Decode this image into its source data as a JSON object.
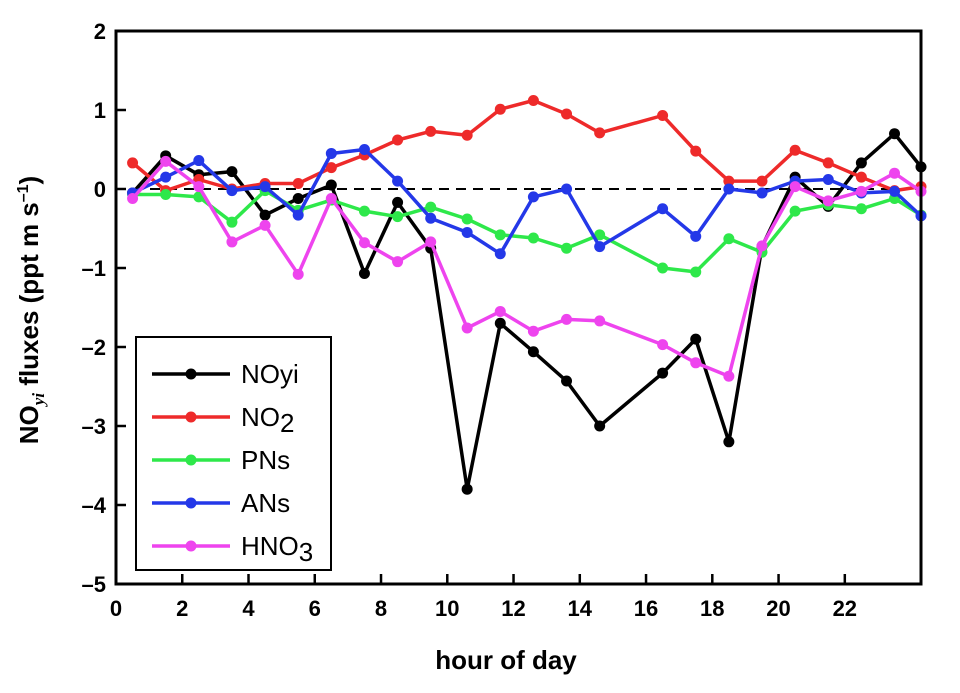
{
  "chart_data": {
    "type": "line",
    "xlabel": "hour of day",
    "ylabel": {
      "prefix": "NO",
      "subscript": "yi",
      "main": " fluxes (ppt m s",
      "superscript": "–1",
      "suffix": ")"
    },
    "xlim": [
      0,
      24.3
    ],
    "ylim": [
      -5,
      2
    ],
    "xticks": [
      0,
      2,
      4,
      6,
      8,
      10,
      12,
      14,
      16,
      18,
      20,
      22
    ],
    "yticks": [
      2,
      1,
      0,
      -1,
      -2,
      -3,
      -4,
      -5
    ],
    "ytick_labels": [
      "2",
      "1",
      "0",
      "–1",
      "–2",
      "–3",
      "–4",
      "–5"
    ],
    "zero_line": "dashed",
    "legend_placement": "bottom-left",
    "series": [
      {
        "name": "NOyi",
        "name_main": "NOyi",
        "name_sub": "",
        "name_tail": "",
        "color": "#000000",
        "x": [
          0.5,
          1.5,
          2.5,
          3.5,
          4.5,
          5.5,
          6.5,
          7.5,
          8.5,
          9.5,
          10.6,
          11.6,
          12.6,
          13.6,
          14.6,
          16.5,
          17.5,
          18.5,
          19.5,
          20.5,
          21.5,
          22.5,
          23.5,
          24.3
        ],
        "y": [
          -0.05,
          0.42,
          0.18,
          0.22,
          -0.33,
          -0.12,
          0.05,
          -1.07,
          -0.17,
          -0.75,
          -3.8,
          -1.7,
          -2.06,
          -2.43,
          -3.0,
          -2.33,
          -1.9,
          -3.2,
          -0.73,
          0.15,
          -0.22,
          0.33,
          0.7,
          0.28
        ]
      },
      {
        "name": "NO2",
        "name_main": "NO",
        "name_sub": "2",
        "name_tail": "",
        "color": "#ee2a2a",
        "x": [
          0.5,
          1.5,
          2.5,
          3.5,
          4.5,
          5.5,
          6.5,
          7.5,
          8.5,
          9.5,
          10.6,
          11.6,
          12.6,
          13.6,
          14.6,
          16.5,
          17.5,
          18.5,
          19.5,
          20.5,
          21.5,
          22.5,
          23.5,
          24.3
        ],
        "y": [
          0.33,
          -0.02,
          0.12,
          0.0,
          0.07,
          0.07,
          0.27,
          0.43,
          0.62,
          0.73,
          0.68,
          1.01,
          1.12,
          0.95,
          0.71,
          0.93,
          0.48,
          0.1,
          0.1,
          0.49,
          0.33,
          0.15,
          -0.02,
          0.03
        ]
      },
      {
        "name": "PNs",
        "name_main": "PNs",
        "name_sub": "",
        "name_tail": "",
        "color": "#2ee84a",
        "x": [
          0.5,
          1.5,
          2.5,
          3.5,
          4.5,
          5.5,
          6.5,
          7.5,
          8.5,
          9.5,
          10.6,
          11.6,
          12.6,
          13.6,
          14.6,
          16.5,
          17.5,
          18.5,
          19.5,
          20.5,
          21.5,
          22.5,
          23.5,
          24.3
        ],
        "y": [
          -0.07,
          -0.07,
          -0.1,
          -0.42,
          -0.02,
          -0.27,
          -0.14,
          -0.28,
          -0.35,
          -0.23,
          -0.38,
          -0.58,
          -0.62,
          -0.75,
          -0.58,
          -1.0,
          -1.05,
          -0.63,
          -0.8,
          -0.28,
          -0.2,
          -0.25,
          -0.12,
          -0.33
        ]
      },
      {
        "name": "ANs",
        "name_main": "ANs",
        "name_sub": "",
        "name_tail": "",
        "color": "#2438e8",
        "x": [
          0.5,
          1.5,
          2.5,
          3.5,
          4.5,
          5.5,
          6.5,
          7.5,
          8.5,
          9.5,
          10.6,
          11.6,
          12.6,
          13.6,
          14.6,
          16.5,
          17.5,
          18.5,
          19.5,
          20.5,
          21.5,
          22.5,
          23.5,
          24.3
        ],
        "y": [
          -0.05,
          0.15,
          0.36,
          -0.02,
          0.03,
          -0.33,
          0.45,
          0.5,
          0.1,
          -0.37,
          -0.55,
          -0.82,
          -0.1,
          0.0,
          -0.73,
          -0.25,
          -0.6,
          0.0,
          -0.05,
          0.1,
          0.12,
          -0.05,
          -0.03,
          -0.34
        ]
      },
      {
        "name": "HNO3",
        "name_main": "HNO",
        "name_sub": "3",
        "name_tail": "",
        "color": "#ee44ee",
        "x": [
          0.5,
          1.5,
          2.5,
          3.5,
          4.5,
          5.5,
          6.5,
          7.5,
          8.5,
          9.5,
          10.6,
          11.6,
          12.6,
          13.6,
          14.6,
          16.5,
          17.5,
          18.5,
          19.5,
          20.5,
          21.5,
          22.5,
          23.5,
          24.3
        ],
        "y": [
          -0.12,
          0.35,
          0.03,
          -0.67,
          -0.46,
          -1.08,
          -0.12,
          -0.68,
          -0.92,
          -0.67,
          -1.76,
          -1.55,
          -1.8,
          -1.65,
          -1.67,
          -1.97,
          -2.2,
          -2.37,
          -0.72,
          0.03,
          -0.15,
          -0.03,
          0.2,
          -0.03
        ]
      }
    ]
  }
}
